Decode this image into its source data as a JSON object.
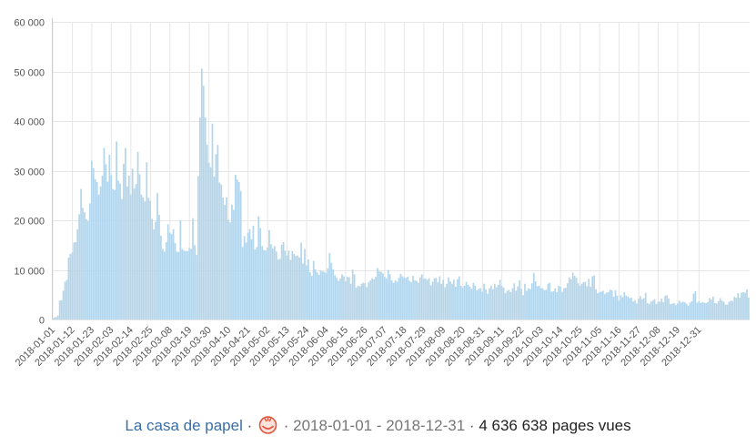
{
  "footer": {
    "article_title": "La casa de papel",
    "separator": "·",
    "icon": "pageviews-logo-icon",
    "date_range": "2018-01-01 - 2018-12-31",
    "total_value": "4 636 638",
    "total_unit": "pages vues"
  },
  "colors": {
    "bar": "#b3d6ec",
    "grid": "#e6e6e6",
    "link": "#3a6ea5"
  },
  "chart_data": {
    "type": "bar",
    "title": "",
    "xlabel": "",
    "ylabel": "",
    "ylim": [
      0,
      60000
    ],
    "yticks": [
      0,
      10000,
      20000,
      30000,
      40000,
      50000,
      60000
    ],
    "ytick_labels": [
      "0",
      "10 000",
      "20 000",
      "30 000",
      "40 000",
      "50 000",
      "60 000"
    ],
    "xtick_labels": [
      "2018-01-01",
      "2018-01-12",
      "2018-01-23",
      "2018-02-03",
      "2018-02-14",
      "2018-02-25",
      "2018-03-08",
      "2018-03-19",
      "2018-03-30",
      "2018-04-10",
      "2018-04-21",
      "2018-05-02",
      "2018-05-13",
      "2018-05-24",
      "2018-06-04",
      "2018-06-15",
      "2018-06-26",
      "2018-07-07",
      "2018-07-18",
      "2018-07-29",
      "2018-08-09",
      "2018-08-20",
      "2018-08-31",
      "2018-09-11",
      "2018-09-22",
      "2018-10-03",
      "2018-10-14",
      "2018-10-25",
      "2018-11-05",
      "2018-11-16",
      "2018-11-27",
      "2018-12-08",
      "2018-12-19",
      "2018-12-31"
    ],
    "grid": true,
    "start_date": "2018-01-01",
    "values": [
      300,
      400,
      500,
      800,
      3800,
      3900,
      5800,
      7600,
      8000,
      12500,
      13200,
      13500,
      15500,
      15600,
      18200,
      21200,
      26300,
      22500,
      21600,
      20200,
      19800,
      23400,
      32000,
      30500,
      28300,
      27700,
      25200,
      26800,
      29000,
      34600,
      31300,
      27800,
      33200,
      29100,
      26300,
      26100,
      35900,
      28000,
      27400,
      24300,
      31400,
      34500,
      26800,
      29000,
      25200,
      30400,
      26400,
      27300,
      33800,
      29300,
      25200,
      24600,
      23800,
      31700,
      24500,
      23900,
      20300,
      18200,
      19700,
      25500,
      21100,
      16900,
      14200,
      13700,
      15600,
      19200,
      17500,
      17200,
      18200,
      15400,
      13700,
      13600,
      20000,
      14200,
      13900,
      13800,
      13800,
      14400,
      14200,
      20400,
      15000,
      13000,
      28900,
      40700,
      50600,
      47100,
      40700,
      35200,
      31600,
      30700,
      39500,
      28800,
      33300,
      35200,
      27600,
      27200,
      24600,
      23100,
      24600,
      20100,
      19600,
      23100,
      22100,
      29200,
      28200,
      27700,
      25900,
      14600,
      16800,
      15500,
      17500,
      18200,
      16200,
      18900,
      14100,
      14600,
      20800,
      18400,
      14800,
      14000,
      13900,
      14500,
      18000,
      15200,
      14300,
      14800,
      13700,
      12100,
      12200,
      15100,
      15600,
      13900,
      12900,
      13900,
      12000,
      13800,
      13200,
      12800,
      12900,
      12500,
      15500,
      11300,
      14200,
      10900,
      12100,
      9500,
      8800,
      11800,
      10100,
      9500,
      9000,
      9800,
      9700,
      9600,
      9400,
      10300,
      13400,
      11400,
      10100,
      8900,
      8400,
      7800,
      8300,
      9100,
      8700,
      7700,
      8600,
      8500,
      7200,
      10100,
      9100,
      6400,
      6800,
      6700,
      7200,
      7400,
      7300,
      6500,
      7500,
      7900,
      8300,
      8100,
      8600,
      10400,
      9700,
      9600,
      9300,
      8600,
      8300,
      10000,
      9100,
      7900,
      7400,
      7900,
      7600,
      8400,
      9200,
      8700,
      8400,
      8400,
      8600,
      7800,
      7500,
      8800,
      7900,
      7800,
      7400,
      8500,
      9100,
      8200,
      8300,
      8000,
      8300,
      6900,
      7600,
      8300,
      8400,
      7500,
      8700,
      7200,
      8000,
      6500,
      7200,
      8500,
      7700,
      7200,
      8000,
      6600,
      8100,
      8700,
      6800,
      6400,
      6800,
      7600,
      7000,
      6600,
      6200,
      7400,
      6800,
      5900,
      6200,
      6300,
      5600,
      7200,
      6100,
      5200,
      6300,
      6800,
      6100,
      7200,
      6500,
      7000,
      8000,
      6800,
      6400,
      5300,
      5800,
      6000,
      5500,
      6300,
      7300,
      5800,
      6700,
      7900,
      6200,
      4900,
      7200,
      5800,
      6300,
      6100,
      7300,
      9400,
      7700,
      6700,
      6800,
      6300,
      6300,
      5900,
      6000,
      7200,
      7400,
      5600,
      5700,
      6300,
      5500,
      6800,
      6600,
      5600,
      6300,
      6400,
      7300,
      8500,
      8100,
      9500,
      8800,
      8400,
      7300,
      6800,
      7200,
      7500,
      7600,
      6700,
      8200,
      6600,
      8700,
      8900,
      6100,
      5300,
      5500,
      5600,
      5800,
      5100,
      5400,
      5500,
      6000,
      5900,
      4600,
      5900,
      4800,
      3800,
      4900,
      4500,
      5500,
      4800,
      4600,
      4300,
      4400,
      3600,
      3900,
      3200,
      4200,
      4700,
      4100,
      4300,
      5400,
      3300,
      3100,
      3600,
      3800,
      4100,
      3100,
      3500,
      3600,
      4200,
      3500,
      4800,
      4900,
      4200,
      3100,
      3200,
      3300,
      2900,
      3200,
      3800,
      3400,
      3600,
      3500,
      3200,
      2800,
      3400,
      3700,
      5200,
      5700,
      3400,
      3700,
      3300,
      3500,
      3400,
      3300,
      3500,
      4300,
      4000,
      4600,
      3300,
      3200,
      3700,
      4300,
      3800,
      3600,
      3000,
      3000,
      3600,
      3800,
      3700,
      4600,
      4400,
      5300,
      4400,
      5400,
      5500,
      5400,
      6100,
      4400
    ]
  }
}
